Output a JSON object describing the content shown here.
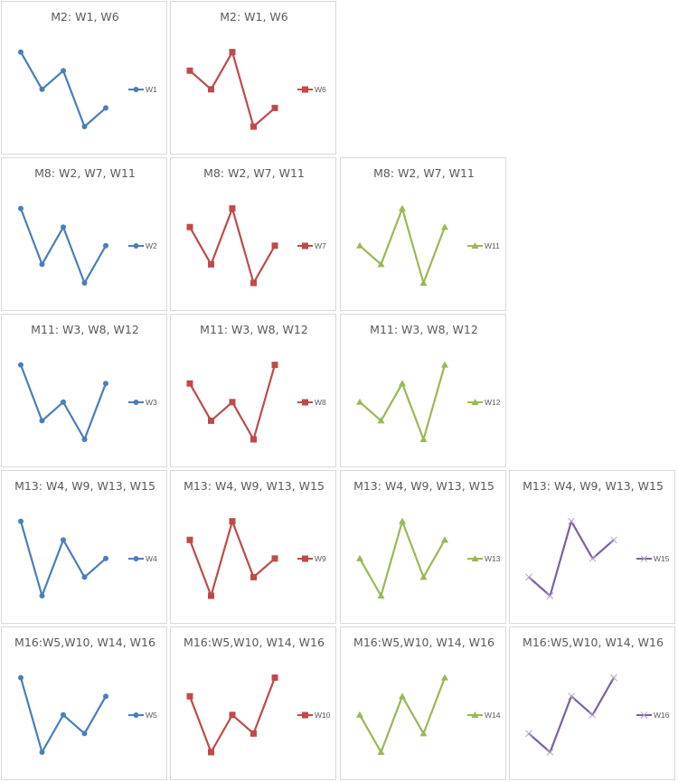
{
  "colors": {
    "W-blue": "#4a7ebb",
    "W-red": "#be4b48",
    "W-green": "#98b954",
    "W-purple": "#7d60a0",
    "border": "#d9d9d9",
    "text": "#595959"
  },
  "chart_data": [
    {
      "type": "line",
      "title": "M2: W1, W6",
      "legend_position": "right",
      "rows": [
        {
          "title": "M2: W1, W6",
          "series": [
            {
              "name": "W1",
              "values": [
                4,
                2,
                3,
                0,
                1
              ],
              "color": "#4a7ebb",
              "marker": "circle"
            }
          ]
        },
        {
          "title": "M2: W1, W6",
          "series": [
            {
              "name": "W6",
              "values": [
                3,
                2,
                4,
                0,
                1
              ],
              "color": "#be4b48",
              "marker": "square"
            }
          ]
        }
      ]
    },
    {
      "type": "line",
      "title": "M8: W2, W7, W11",
      "legend_position": "right",
      "rows": [
        {
          "title": "M8: W2, W7, W11",
          "series": [
            {
              "name": "W2",
              "values": [
                4,
                1,
                3,
                0,
                2
              ],
              "color": "#4a7ebb",
              "marker": "circle"
            }
          ]
        },
        {
          "title": "M8: W2, W7, W11",
          "series": [
            {
              "name": "W7",
              "values": [
                3,
                1,
                4,
                0,
                2
              ],
              "color": "#be4b48",
              "marker": "square"
            }
          ]
        },
        {
          "title": "M8: W2, W7, W11",
          "series": [
            {
              "name": "W11",
              "values": [
                2,
                1,
                4,
                0,
                3
              ],
              "color": "#98b954",
              "marker": "triangle"
            }
          ]
        }
      ]
    },
    {
      "type": "line",
      "title": "M11: W3, W8, W12",
      "legend_position": "right",
      "rows": [
        {
          "title": "M11: W3, W8, W12",
          "series": [
            {
              "name": "W3",
              "values": [
                4,
                1,
                2,
                0,
                3
              ],
              "color": "#4a7ebb",
              "marker": "circle"
            }
          ]
        },
        {
          "title": "M11: W3, W8, W12",
          "series": [
            {
              "name": "W8",
              "values": [
                3,
                1,
                2,
                0,
                4
              ],
              "color": "#be4b48",
              "marker": "square"
            }
          ]
        },
        {
          "title": "M11: W3, W8, W12",
          "series": [
            {
              "name": "W12",
              "values": [
                2,
                1,
                3,
                0,
                4
              ],
              "color": "#98b954",
              "marker": "triangle"
            }
          ]
        }
      ]
    },
    {
      "type": "line",
      "title": "M13: W4, W9, W13, W15",
      "legend_position": "right",
      "rows": [
        {
          "title": "M13: W4, W9, W13, W15",
          "series": [
            {
              "name": "W4",
              "values": [
                4,
                0,
                3,
                1,
                2
              ],
              "color": "#4a7ebb",
              "marker": "circle"
            }
          ]
        },
        {
          "title": "M13: W4, W9, W13, W15",
          "series": [
            {
              "name": "W9",
              "values": [
                3,
                0,
                4,
                1,
                2
              ],
              "color": "#be4b48",
              "marker": "square"
            }
          ]
        },
        {
          "title": "M13: W4, W9, W13, W15",
          "series": [
            {
              "name": "W13",
              "values": [
                2,
                0,
                4,
                1,
                3
              ],
              "color": "#98b954",
              "marker": "triangle"
            }
          ]
        },
        {
          "title": "M13: W4, W9, W13, W15",
          "series": [
            {
              "name": "W15",
              "values": [
                1,
                0,
                4,
                2,
                3
              ],
              "color": "#7d60a0",
              "marker": "x"
            }
          ]
        }
      ]
    },
    {
      "type": "line",
      "title": "M16:W5,W10, W14, W16",
      "legend_position": "right",
      "rows": [
        {
          "title": "M16:W5,W10, W14, W16",
          "series": [
            {
              "name": "W5",
              "values": [
                4,
                0,
                2,
                1,
                3
              ],
              "color": "#4a7ebb",
              "marker": "circle"
            }
          ]
        },
        {
          "title": "M16:W5,W10, W14, W16",
          "series": [
            {
              "name": "W10",
              "values": [
                3,
                0,
                2,
                1,
                4
              ],
              "color": "#be4b48",
              "marker": "square"
            }
          ]
        },
        {
          "title": "M16:W5,W10, W14, W16",
          "series": [
            {
              "name": "W14",
              "values": [
                2,
                0,
                3,
                1,
                4
              ],
              "color": "#98b954",
              "marker": "triangle"
            }
          ]
        },
        {
          "title": "M16:W5,W10, W14, W16",
          "series": [
            {
              "name": "W16",
              "values": [
                1,
                0,
                3,
                2,
                4
              ],
              "color": "#7d60a0",
              "marker": "x"
            }
          ]
        }
      ]
    }
  ]
}
